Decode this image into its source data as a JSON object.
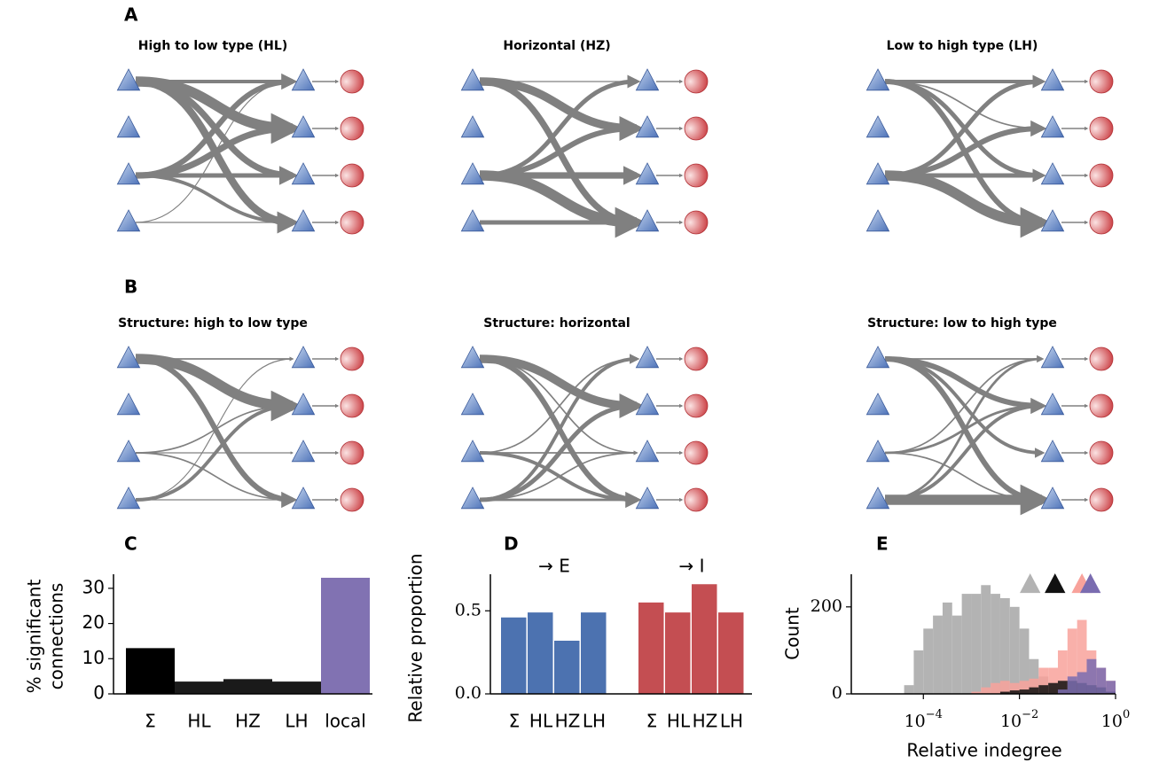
{
  "panel_labels": [
    "A",
    "B",
    "C",
    "D",
    "E"
  ],
  "chart_data": [
    {
      "type": "network",
      "title": "High to low type (HL)",
      "edges": [
        {
          "from": 0,
          "to": 0,
          "weight": 3
        },
        {
          "from": 0,
          "to": 1,
          "weight": 10
        },
        {
          "from": 0,
          "to": 2,
          "weight": 6
        },
        {
          "from": 0,
          "to": 3,
          "weight": 7
        },
        {
          "from": 2,
          "to": 0,
          "weight": 5
        },
        {
          "from": 2,
          "to": 1,
          "weight": 6
        },
        {
          "from": 2,
          "to": 2,
          "weight": 4
        },
        {
          "from": 2,
          "to": 3,
          "weight": 3
        },
        {
          "from": 3,
          "to": 0,
          "weight": 0.5
        },
        {
          "from": 3,
          "to": 3,
          "weight": 0.5
        }
      ]
    },
    {
      "type": "network",
      "title": "Horizontal (HZ)",
      "edges": [
        {
          "from": 0,
          "to": 0,
          "weight": 0.5
        },
        {
          "from": 0,
          "to": 1,
          "weight": 8
        },
        {
          "from": 0,
          "to": 3,
          "weight": 6
        },
        {
          "from": 2,
          "to": 0,
          "weight": 4
        },
        {
          "from": 2,
          "to": 1,
          "weight": 5
        },
        {
          "from": 2,
          "to": 2,
          "weight": 6
        },
        {
          "from": 2,
          "to": 3,
          "weight": 10
        },
        {
          "from": 3,
          "to": 3,
          "weight": 4
        }
      ]
    },
    {
      "type": "network",
      "title": "Low to high type (LH)",
      "edges": [
        {
          "from": 0,
          "to": 0,
          "weight": 3
        },
        {
          "from": 0,
          "to": 1,
          "weight": 1
        },
        {
          "from": 0,
          "to": 2,
          "weight": 4
        },
        {
          "from": 0,
          "to": 3,
          "weight": 5
        },
        {
          "from": 2,
          "to": 0,
          "weight": 4
        },
        {
          "from": 2,
          "to": 1,
          "weight": 5
        },
        {
          "from": 2,
          "to": 2,
          "weight": 4
        },
        {
          "from": 2,
          "to": 3,
          "weight": 10
        }
      ]
    },
    {
      "type": "network",
      "title": "Structure: high to low type",
      "edges": [
        {
          "from": 0,
          "to": 0,
          "weight": 1
        },
        {
          "from": 0,
          "to": 1,
          "weight": 10
        },
        {
          "from": 0,
          "to": 3,
          "weight": 5
        },
        {
          "from": 2,
          "to": 1,
          "weight": 1
        },
        {
          "from": 2,
          "to": 2,
          "weight": 0.5
        },
        {
          "from": 2,
          "to": 3,
          "weight": 1
        },
        {
          "from": 3,
          "to": 0,
          "weight": 0.5
        },
        {
          "from": 3,
          "to": 1,
          "weight": 3
        },
        {
          "from": 3,
          "to": 3,
          "weight": 0.5
        }
      ]
    },
    {
      "type": "network",
      "title": "Structure: horizontal",
      "edges": [
        {
          "from": 0,
          "to": 1,
          "weight": 8
        },
        {
          "from": 0,
          "to": 2,
          "weight": 1
        },
        {
          "from": 0,
          "to": 3,
          "weight": 5
        },
        {
          "from": 2,
          "to": 0,
          "weight": 1
        },
        {
          "from": 2,
          "to": 2,
          "weight": 1
        },
        {
          "from": 2,
          "to": 3,
          "weight": 3
        },
        {
          "from": 3,
          "to": 0,
          "weight": 3
        },
        {
          "from": 3,
          "to": 1,
          "weight": 4
        },
        {
          "from": 3,
          "to": 2,
          "weight": 1
        },
        {
          "from": 3,
          "to": 3,
          "weight": 2
        }
      ]
    },
    {
      "type": "network",
      "title": "Structure: low to high type",
      "edges": [
        {
          "from": 0,
          "to": 0,
          "weight": 1
        },
        {
          "from": 0,
          "to": 1,
          "weight": 5
        },
        {
          "from": 0,
          "to": 2,
          "weight": 3
        },
        {
          "from": 0,
          "to": 3,
          "weight": 5
        },
        {
          "from": 2,
          "to": 0,
          "weight": 1
        },
        {
          "from": 2,
          "to": 1,
          "weight": 2
        },
        {
          "from": 2,
          "to": 3,
          "weight": 1
        },
        {
          "from": 3,
          "to": 0,
          "weight": 2
        },
        {
          "from": 3,
          "to": 1,
          "weight": 3
        },
        {
          "from": 3,
          "to": 3,
          "weight": 10
        }
      ]
    },
    {
      "type": "bar",
      "ylabel": [
        "% significant",
        "connections"
      ],
      "categories": [
        "Σ",
        "HL",
        "HZ",
        "LH",
        "local"
      ],
      "values": [
        13,
        3.5,
        4.2,
        3.5,
        33
      ],
      "colors": [
        "#000000",
        "#1a1a1a",
        "#1a1a1a",
        "#1a1a1a",
        "#8172b2"
      ],
      "ylim": [
        0,
        34
      ],
      "yticks": [
        0,
        10,
        20,
        30
      ]
    },
    {
      "type": "grouped_bar",
      "ylabel": "Relative proportion",
      "categories": [
        "Σ",
        "HL",
        "HZ",
        "LH"
      ],
      "series": [
        {
          "name": "→ E",
          "color": "#4c72b0",
          "values": [
            0.46,
            0.49,
            0.32,
            0.49
          ]
        },
        {
          "name": "→ I",
          "color": "#c44e52",
          "values": [
            0.55,
            0.49,
            0.66,
            0.49
          ]
        }
      ],
      "ylim": [
        0,
        0.72
      ],
      "yticks": [
        {
          "value": 0,
          "label": "0.0"
        },
        {
          "value": 0.5,
          "label": "0.5"
        }
      ]
    },
    {
      "type": "histogram",
      "xlabel": "Relative indegree",
      "ylabel": "Count",
      "log_x": true,
      "bins": [
        1.585e-05,
        2.512e-05,
        3.981e-05,
        6.31e-05,
        0.0001,
        0.0001585,
        0.0002512,
        0.0003981,
        0.000631,
        0.001,
        0.001585,
        0.002512,
        0.003981,
        0.00631,
        0.01,
        0.01585,
        0.02512,
        0.03981,
        0.0631,
        0.1,
        0.1585,
        0.2512,
        0.3981,
        0.631,
        1
      ],
      "series": [
        {
          "color": "#b3b3b3",
          "values": [
            0,
            0,
            20,
            100,
            150,
            180,
            210,
            180,
            230,
            230,
            250,
            230,
            220,
            200,
            150,
            80,
            40,
            15,
            5,
            0,
            0,
            0,
            0,
            0
          ]
        },
        {
          "color": "#f8a29b",
          "values": [
            0,
            0,
            0,
            0,
            0,
            0,
            0,
            0,
            0,
            5,
            15,
            25,
            30,
            25,
            30,
            35,
            60,
            60,
            100,
            150,
            170,
            100,
            60,
            30
          ]
        },
        {
          "color": "#111111",
          "values": [
            0,
            0,
            0,
            0,
            0,
            0,
            0,
            0,
            0,
            0,
            0,
            0,
            5,
            8,
            10,
            15,
            20,
            25,
            30,
            30,
            25,
            20,
            15,
            5
          ]
        },
        {
          "color": "#7a6cb0",
          "values": [
            0,
            0,
            0,
            0,
            0,
            0,
            0,
            0,
            0,
            0,
            0,
            0,
            0,
            0,
            0,
            0,
            0,
            0,
            10,
            40,
            50,
            80,
            60,
            30
          ]
        }
      ],
      "markers": [
        {
          "x": 0.0167,
          "color": "#b3b3b3"
        },
        {
          "x": 0.055,
          "color": "#111111"
        },
        {
          "x": 0.2,
          "color": "#f8a29b"
        },
        {
          "x": 0.3,
          "color": "#7a6cb0"
        }
      ],
      "xlim": [
        3.162e-06,
        1
      ],
      "xticks": [
        {
          "value": 0.0001,
          "label": "10",
          "exponent": "−4"
        },
        {
          "value": 0.01,
          "label": "10",
          "exponent": "−2"
        },
        {
          "value": 1,
          "label": "10",
          "exponent": "0"
        }
      ],
      "ylim": [
        0,
        275
      ],
      "yticks": [
        0,
        200
      ]
    }
  ]
}
